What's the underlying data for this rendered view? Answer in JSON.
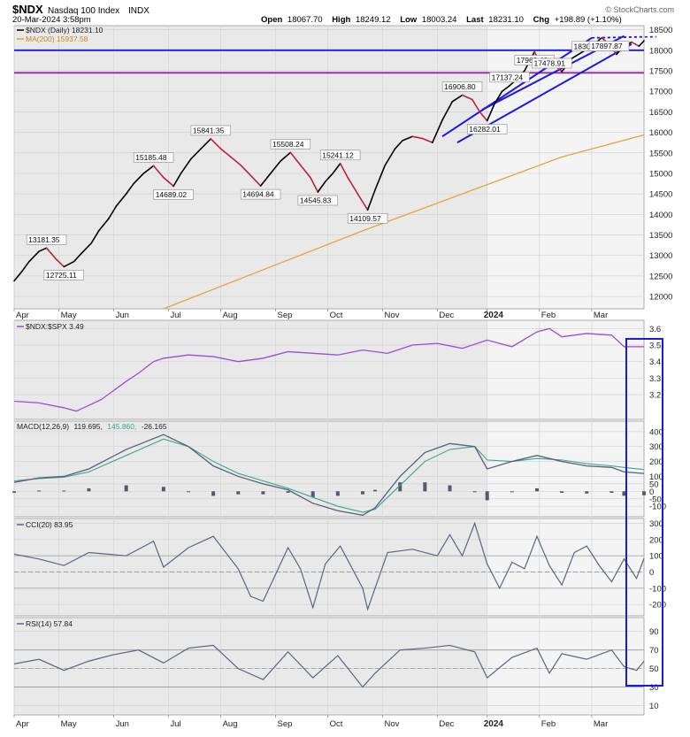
{
  "header": {
    "symbol": "$NDX",
    "name": "Nasdaq 100 Index",
    "exchange": "INDX",
    "datetime": "20-Mar-2024 3:58pm",
    "open_label": "Open",
    "open": "18067.70",
    "high_label": "High",
    "high": "18249.12",
    "low_label": "Low",
    "low": "18003.24",
    "last_label": "Last",
    "last": "18231.10",
    "chg_label": "Chg",
    "chg": "+198.89 (+1.10%)",
    "watermark": "© StockCharts.com"
  },
  "legends": {
    "price": "$NDX (Daily) 18231.10",
    "ma": "MA(200) 15937.58",
    "ratio": "$NDX:$SPX 3.49",
    "macd_prefix": "MACD(12,26,9)",
    "macd_v1": "119.695,",
    "macd_v2": "145.860,",
    "macd_v3": "-26.165",
    "cci": "CCI(20) 83.95",
    "rsi": "RSI(14) 57.84"
  },
  "chart_data": {
    "type": "line",
    "months": [
      "Apr",
      "May",
      "Jun",
      "Jul",
      "Aug",
      "Sep",
      "Oct",
      "Nov",
      "Dec",
      "2024",
      "Feb",
      "Mar"
    ],
    "panels": [
      {
        "id": "price",
        "ylim": [
          11700,
          18600
        ],
        "ticks": [
          12000,
          12500,
          13000,
          13500,
          14000,
          14500,
          15000,
          15500,
          16000,
          16500,
          17000,
          17500,
          18000,
          18500
        ]
      },
      {
        "id": "ratio",
        "ylim": [
          3.05,
          3.65
        ],
        "ticks": [
          "3.2",
          "3.3",
          "3.4",
          "3.5",
          "3.6"
        ]
      },
      {
        "id": "macd",
        "ylim": [
          -170,
          470
        ],
        "ticks": [
          -100,
          -50,
          0,
          50,
          100,
          200,
          300,
          400
        ]
      },
      {
        "id": "cci",
        "ylim": [
          -270,
          330
        ],
        "ticks": [
          -200,
          -100,
          0,
          100,
          200,
          300
        ]
      },
      {
        "id": "rsi",
        "ylim": [
          0,
          105
        ],
        "ticks": [
          10,
          30,
          50,
          70,
          90
        ]
      }
    ],
    "price_series": {
      "name": "$NDX (Daily)",
      "x": [
        0,
        3,
        6,
        10,
        13,
        17,
        20,
        24,
        27,
        31,
        34,
        38,
        41,
        45,
        48,
        52,
        56,
        60,
        64,
        67,
        71,
        75,
        79,
        83,
        87,
        91,
        95,
        99,
        103,
        107,
        111,
        115,
        119,
        122,
        125,
        128,
        131,
        134,
        138,
        142,
        145,
        149,
        153,
        156,
        160,
        164,
        168,
        172,
        176,
        180,
        184,
        187,
        190,
        193,
        196,
        199,
        202,
        205,
        209,
        212,
        216,
        220,
        224,
        228,
        232,
        236,
        239,
        242,
        244,
        248,
        251,
        253
      ],
      "values": [
        12380,
        12600,
        12850,
        13100,
        13181.35,
        12900,
        12725.11,
        12850,
        13050,
        13300,
        13600,
        13900,
        14200,
        14500,
        14750,
        15000,
        15185.48,
        14900,
        14689.02,
        15000,
        15350,
        15600,
        15841.35,
        15600,
        15400,
        15200,
        14950,
        14694.84,
        15000,
        15300,
        15508.24,
        15200,
        14900,
        14545.83,
        14800,
        15000,
        15241.12,
        14900,
        14500,
        14109.57,
        14600,
        15200,
        15600,
        15800,
        15900,
        15850,
        15750,
        16300,
        16750,
        16906.8,
        16800,
        16500,
        16282.01,
        16700,
        17000,
        17137.24,
        17300,
        17500,
        17962.4,
        17600,
        17700,
        17478.91,
        17800,
        17950,
        18100,
        18302.91,
        18150,
        17897.87,
        18050,
        18200,
        18100,
        18231.1
      ]
    },
    "ma_series": {
      "name": "MA(200)",
      "x": [
        60,
        100,
        140,
        180,
        220,
        253
      ],
      "values": [
        11700,
        12650,
        13600,
        14500,
        15400,
        15937.58
      ]
    },
    "price_labels": [
      {
        "x": 13,
        "value": 13181.35,
        "text": "13181.35"
      },
      {
        "x": 20,
        "value": 12725.11,
        "text": "12725.11"
      },
      {
        "x": 56,
        "value": 15185.48,
        "text": "15185.48"
      },
      {
        "x": 64,
        "value": 14689.02,
        "text": "14689.02"
      },
      {
        "x": 79,
        "value": 15841.35,
        "text": "15841.35"
      },
      {
        "x": 99,
        "value": 14694.84,
        "text": "14694.84"
      },
      {
        "x": 111,
        "value": 15508.24,
        "text": "15508.24"
      },
      {
        "x": 122,
        "value": 14545.83,
        "text": "14545.83"
      },
      {
        "x": 131,
        "value": 15241.12,
        "text": "15241.12"
      },
      {
        "x": 142,
        "value": 14109.57,
        "text": "14109.57"
      },
      {
        "x": 180,
        "value": 16906.8,
        "text": "16906.80"
      },
      {
        "x": 190,
        "value": 16282.01,
        "text": "16282.01"
      },
      {
        "x": 199,
        "value": 17137.24,
        "text": "17137.24"
      },
      {
        "x": 209,
        "value": 17962.4,
        "text": "17962.40"
      },
      {
        "x": 216,
        "value": 17478.91,
        "text": "17478.91"
      },
      {
        "x": 232,
        "value": 18302.91,
        "text": "18302.91"
      },
      {
        "x": 239,
        "value": 17897.87,
        "text": "17897.87"
      }
    ],
    "horizontal_lines": [
      {
        "name": "resistance",
        "value": 18000,
        "color": "#1a1adf"
      },
      {
        "name": "support",
        "value": 17450,
        "color": "#9a22b0"
      }
    ],
    "ratio_series": {
      "name": "$NDX:$SPX",
      "x": [
        0,
        10,
        20,
        25,
        35,
        45,
        50,
        56,
        60,
        70,
        80,
        90,
        100,
        110,
        120,
        130,
        140,
        150,
        160,
        170,
        180,
        190,
        200,
        210,
        215,
        220,
        230,
        240,
        245,
        253
      ],
      "values": [
        3.16,
        3.15,
        3.12,
        3.1,
        3.17,
        3.28,
        3.33,
        3.4,
        3.42,
        3.44,
        3.43,
        3.4,
        3.42,
        3.46,
        3.45,
        3.44,
        3.47,
        3.45,
        3.5,
        3.51,
        3.48,
        3.53,
        3.49,
        3.58,
        3.6,
        3.55,
        3.57,
        3.56,
        3.49,
        3.49
      ]
    },
    "macd_series": {
      "x": [
        0,
        10,
        20,
        30,
        45,
        60,
        70,
        80,
        90,
        100,
        110,
        120,
        130,
        140,
        145,
        155,
        165,
        175,
        185,
        190,
        200,
        210,
        220,
        230,
        240,
        245,
        253
      ],
      "macd": [
        60,
        90,
        100,
        150,
        280,
        380,
        300,
        170,
        100,
        50,
        10,
        -80,
        -130,
        -160,
        -110,
        100,
        260,
        320,
        300,
        150,
        200,
        240,
        200,
        170,
        160,
        130,
        119.695
      ],
      "signal": [
        70,
        85,
        95,
        130,
        240,
        350,
        300,
        200,
        120,
        70,
        20,
        -40,
        -100,
        -140,
        -120,
        40,
        200,
        280,
        300,
        210,
        200,
        220,
        210,
        185,
        170,
        160,
        145.86
      ],
      "histogram": [
        -10,
        5,
        5,
        20,
        40,
        30,
        0,
        -30,
        -20,
        -20,
        -10,
        -40,
        -30,
        -20,
        10,
        60,
        60,
        40,
        0,
        -60,
        0,
        20,
        -10,
        -15,
        -10,
        -30,
        -26.165
      ]
    },
    "cci_series": {
      "x": [
        0,
        10,
        20,
        30,
        45,
        56,
        60,
        70,
        80,
        90,
        95,
        100,
        110,
        115,
        120,
        125,
        131,
        140,
        142,
        150,
        160,
        170,
        175,
        180,
        185,
        190,
        195,
        200,
        205,
        210,
        215,
        220,
        225,
        230,
        235,
        240,
        245,
        250,
        253
      ],
      "values": [
        110,
        80,
        40,
        120,
        100,
        190,
        30,
        150,
        220,
        20,
        -150,
        -180,
        150,
        20,
        -220,
        50,
        160,
        -100,
        -230,
        120,
        140,
        100,
        230,
        100,
        300,
        50,
        -100,
        60,
        20,
        220,
        40,
        -80,
        120,
        160,
        40,
        -60,
        80,
        -40,
        83.95
      ]
    },
    "rsi_series": {
      "x": [
        0,
        10,
        20,
        30,
        40,
        50,
        60,
        70,
        80,
        90,
        100,
        110,
        120,
        130,
        140,
        145,
        155,
        165,
        175,
        185,
        190,
        200,
        210,
        215,
        220,
        230,
        240,
        245,
        250,
        253
      ],
      "values": [
        55,
        60,
        48,
        58,
        65,
        70,
        56,
        72,
        75,
        50,
        38,
        68,
        40,
        64,
        30,
        45,
        70,
        72,
        75,
        68,
        40,
        62,
        72,
        45,
        66,
        60,
        70,
        52,
        48,
        57.84
      ]
    },
    "rsi_levels": [
      30,
      50,
      70
    ],
    "cci_levels": [
      -100,
      0,
      100
    ]
  },
  "colors": {
    "price_up": "#000000",
    "price_down": "#c41e3a",
    "ma": "#e8a338",
    "channel": "#1a1adf",
    "ratio": "#9a4dd6",
    "macd": "#55607a",
    "signal": "#3aa68f",
    "histogram": "#555a6a",
    "indicator": "#5a6680",
    "panel_bg": "#e9e9e9",
    "recent_bg": "#f4f4f4"
  }
}
